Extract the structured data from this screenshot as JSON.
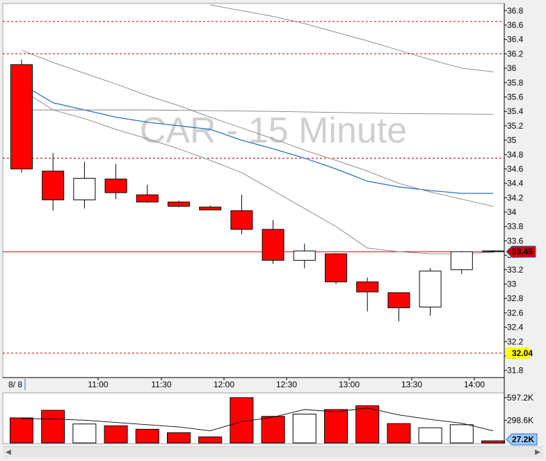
{
  "chart_data": {
    "type": "candlestick",
    "watermark": "CAR - 15 Minute",
    "date_label": "8/ 8",
    "x_labels": [
      "11:00",
      "11:30",
      "12:00",
      "12:30",
      "13:00",
      "13:30",
      "14:00"
    ],
    "ylim": [
      31.7,
      36.9
    ],
    "y_ticks": [
      "36.8",
      "36.6",
      "36.4",
      "36.2",
      "36",
      "35.8",
      "35.6",
      "35.4",
      "35.2",
      "35",
      "34.8",
      "34.6",
      "34.4",
      "34.2",
      "34",
      "33.8",
      "33.6",
      "33.4",
      "33.2",
      "33",
      "32.8",
      "32.6",
      "32.4",
      "32.2",
      "32",
      "31.8"
    ],
    "y_tick_values": [
      36.8,
      36.6,
      36.4,
      36.2,
      36,
      35.8,
      35.6,
      35.4,
      35.2,
      35,
      34.8,
      34.6,
      34.4,
      34.2,
      34,
      33.8,
      33.6,
      33.4,
      33.2,
      33,
      32.8,
      32.6,
      32.4,
      32.2,
      32,
      31.8
    ],
    "candles": [
      {
        "open": 36.05,
        "high": 36.12,
        "low": 34.55,
        "close": 34.6
      },
      {
        "open": 34.57,
        "high": 34.82,
        "low": 34.02,
        "close": 34.17
      },
      {
        "open": 34.17,
        "high": 34.7,
        "low": 34.05,
        "close": 34.47
      },
      {
        "open": 34.46,
        "high": 34.67,
        "low": 34.18,
        "close": 34.27
      },
      {
        "open": 34.24,
        "high": 34.38,
        "low": 34.13,
        "close": 34.14
      },
      {
        "open": 34.14,
        "high": 34.16,
        "low": 34.07,
        "close": 34.08
      },
      {
        "open": 34.07,
        "high": 34.09,
        "low": 34.03,
        "close": 34.03
      },
      {
        "open": 34.02,
        "high": 34.24,
        "low": 33.69,
        "close": 33.76
      },
      {
        "open": 33.76,
        "high": 33.89,
        "low": 33.28,
        "close": 33.33
      },
      {
        "open": 33.33,
        "high": 33.56,
        "low": 33.22,
        "close": 33.46
      },
      {
        "open": 33.42,
        "high": 33.43,
        "low": 33.0,
        "close": 33.03
      },
      {
        "open": 33.03,
        "high": 33.09,
        "low": 32.62,
        "close": 32.89
      },
      {
        "open": 32.88,
        "high": 32.88,
        "low": 32.48,
        "close": 32.67
      },
      {
        "open": 32.68,
        "high": 33.22,
        "low": 32.56,
        "close": 33.18
      },
      {
        "open": 33.2,
        "high": 33.46,
        "low": 33.14,
        "close": 33.45
      },
      {
        "open": 33.46,
        "high": 33.47,
        "low": 33.44,
        "close": 33.45
      }
    ],
    "moving_averages": [
      {
        "color": "#2b6fc9",
        "points": [
          [
            0,
            35.78
          ],
          [
            1,
            35.52
          ],
          [
            2,
            35.42
          ],
          [
            3,
            35.32
          ],
          [
            4,
            35.25
          ],
          [
            5,
            35.2
          ],
          [
            6,
            35.15
          ],
          [
            7,
            35.0
          ],
          [
            8,
            34.88
          ],
          [
            9,
            34.75
          ],
          [
            10,
            34.6
          ],
          [
            11,
            34.43
          ],
          [
            12,
            34.35
          ],
          [
            13,
            34.3
          ],
          [
            14,
            34.26
          ],
          [
            15,
            34.26
          ]
        ]
      },
      {
        "color": "#808080",
        "points": [
          [
            0,
            35.7
          ],
          [
            1,
            35.42
          ],
          [
            2,
            35.3
          ],
          [
            3,
            35.15
          ],
          [
            4,
            35.02
          ],
          [
            5,
            34.88
          ],
          [
            6,
            34.72
          ],
          [
            7,
            34.55
          ],
          [
            8,
            34.3
          ],
          [
            9,
            34.05
          ],
          [
            10,
            33.8
          ],
          [
            11,
            33.5
          ],
          [
            12,
            33.45
          ],
          [
            13,
            33.42
          ],
          [
            14,
            33.42
          ],
          [
            15,
            33.44
          ]
        ]
      },
      {
        "color": "#808080",
        "points": [
          [
            0,
            36.25
          ],
          [
            1,
            36.08
          ],
          [
            2,
            35.93
          ],
          [
            3,
            35.78
          ],
          [
            4,
            35.62
          ],
          [
            5,
            35.48
          ],
          [
            6,
            35.32
          ],
          [
            7,
            35.17
          ],
          [
            8,
            35.02
          ],
          [
            9,
            34.86
          ],
          [
            10,
            34.72
          ],
          [
            11,
            34.57
          ],
          [
            12,
            34.4
          ],
          [
            13,
            34.28
          ],
          [
            14,
            34.18
          ],
          [
            15,
            34.08
          ]
        ]
      },
      {
        "color": "#808080",
        "points": [
          [
            6,
            36.88
          ],
          [
            7,
            36.8
          ],
          [
            8,
            36.72
          ],
          [
            9,
            36.62
          ],
          [
            10,
            36.5
          ],
          [
            11,
            36.38
          ],
          [
            12,
            36.25
          ],
          [
            13,
            36.12
          ],
          [
            14,
            36.0
          ],
          [
            15,
            35.95
          ]
        ]
      },
      {
        "color": "#808080",
        "points": [
          [
            0,
            35.42
          ],
          [
            4,
            35.42
          ],
          [
            8,
            35.4
          ],
          [
            12,
            35.37
          ],
          [
            15,
            35.36
          ]
        ]
      }
    ],
    "reference_lines": [
      {
        "value": 36.65,
        "style": "dashed"
      },
      {
        "value": 36.2,
        "style": "dashed"
      },
      {
        "value": 34.75,
        "style": "dashed"
      },
      {
        "value": 33.45,
        "style": "solid"
      },
      {
        "value": 32.04,
        "style": "dashed"
      }
    ],
    "price_labels": [
      {
        "value": 33.45,
        "text": "33.45",
        "bg": "#cc0000",
        "fg": "#ffffff"
      },
      {
        "value": 32.04,
        "text": "32.04",
        "bg": "#ffff00",
        "fg": "#000000"
      }
    ],
    "volume": {
      "ylim": [
        0,
        660000
      ],
      "y_ticks": [
        "597.2K",
        "298.6K"
      ],
      "y_tick_values": [
        597200,
        298600
      ],
      "current_label": "27.2K",
      "current_value": 27200,
      "bars": [
        330000,
        430000,
        250000,
        225000,
        180000,
        135000,
        80000,
        597200,
        350000,
        380000,
        440000,
        490000,
        255000,
        200000,
        240000,
        27200
      ],
      "average": [
        320000,
        315000,
        300000,
        270000,
        240000,
        210000,
        160000,
        280000,
        340000,
        440000,
        410000,
        460000,
        370000,
        310000,
        260000,
        160000
      ]
    }
  },
  "colors": {
    "down": "#ff0000",
    "up": "#ffffff",
    "grid": "#d8d8d8",
    "ref_line": "#cc0000"
  },
  "scrollbar": {
    "left_arrow": "◀",
    "right_arrow": "▶"
  }
}
